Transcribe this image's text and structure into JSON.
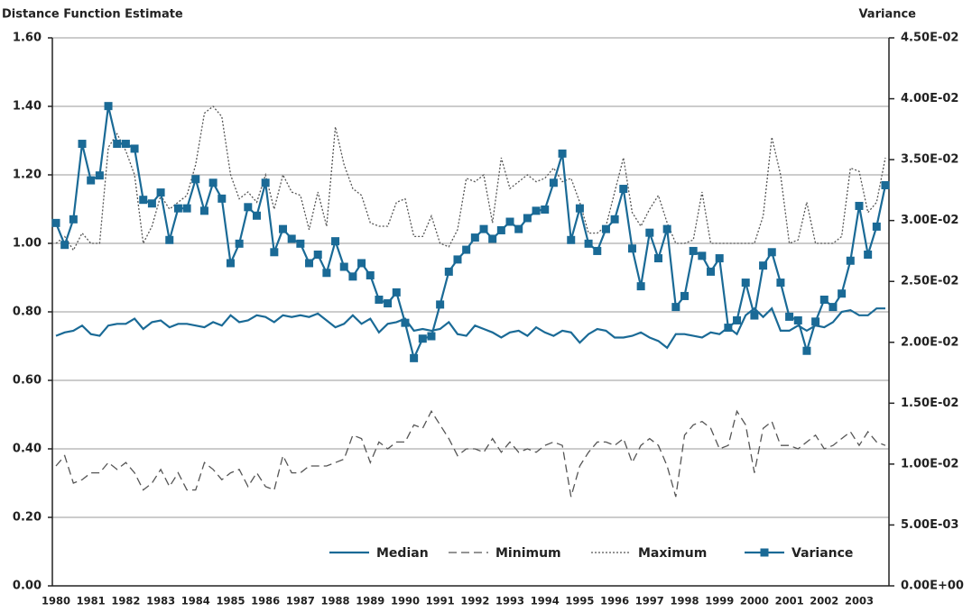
{
  "chart_data": {
    "type": "line",
    "y_label": "Distance Function Estimate",
    "y2_label": "Variance",
    "categories": [
      "1980",
      null,
      null,
      null,
      "1981",
      null,
      null,
      null,
      "1982",
      null,
      null,
      null,
      "1983",
      null,
      null,
      null,
      "1984",
      null,
      null,
      null,
      "1985",
      null,
      null,
      null,
      "1986",
      null,
      null,
      null,
      "1987",
      null,
      null,
      null,
      "1988",
      null,
      null,
      null,
      "1989",
      null,
      null,
      null,
      "1990",
      null,
      null,
      null,
      "1991",
      null,
      null,
      null,
      "1992",
      null,
      null,
      null,
      "1993",
      null,
      null,
      null,
      "1994",
      null,
      null,
      null,
      "1995",
      null,
      null,
      null,
      "1996",
      null,
      null,
      null,
      "1997",
      null,
      null,
      null,
      "1998",
      null,
      null,
      null,
      "1999",
      null,
      null,
      null,
      "2000",
      null,
      null,
      null,
      "2001",
      null,
      null,
      null,
      "2002",
      null,
      null,
      null,
      "2003",
      null,
      null,
      null
    ],
    "ylim": [
      0,
      1.6
    ],
    "yticks": [
      {
        "value": 0,
        "label": "0.00"
      },
      {
        "value": 0.2,
        "label": "0.20"
      },
      {
        "value": 0.4,
        "label": "0.40"
      },
      {
        "value": 0.6,
        "label": "0.60"
      },
      {
        "value": 0.8,
        "label": "0.80"
      },
      {
        "value": 1,
        "label": "1.00"
      },
      {
        "value": 1.2,
        "label": "1.20"
      },
      {
        "value": 1.4,
        "label": "1.40"
      },
      {
        "value": 1.6,
        "label": "1.60"
      }
    ],
    "y2lim": [
      0,
      0.045
    ],
    "y2ticks": [
      {
        "value": 0,
        "label": "0.00E+00"
      },
      {
        "value": 0.005,
        "label": "5.00E-03"
      },
      {
        "value": 0.01,
        "label": "1.00E-02"
      },
      {
        "value": 0.015,
        "label": "1.50E-02"
      },
      {
        "value": 0.02,
        "label": "2.00E-02"
      },
      {
        "value": 0.025,
        "label": "2.50E-02"
      },
      {
        "value": 0.03,
        "label": "3.00E-02"
      },
      {
        "value": 0.035,
        "label": "3.50E-02"
      },
      {
        "value": 0.04,
        "label": "4.00E-02"
      },
      {
        "value": 0.045,
        "label": "4.50E-02"
      }
    ],
    "grid": true,
    "legend": "bottom-right",
    "series": [
      {
        "name": "Median",
        "color": "#1a6a96",
        "style": "solid",
        "values": [
          0.73,
          0.74,
          0.745,
          0.76,
          0.735,
          0.73,
          0.76,
          0.765,
          0.765,
          0.78,
          0.75,
          0.77,
          0.775,
          0.755,
          0.765,
          0.765,
          0.76,
          0.755,
          0.77,
          0.76,
          0.79,
          0.77,
          0.775,
          0.79,
          0.785,
          0.77,
          0.79,
          0.785,
          0.79,
          0.785,
          0.795,
          0.775,
          0.755,
          0.765,
          0.79,
          0.765,
          0.78,
          0.74,
          0.765,
          0.77,
          0.78,
          0.745,
          0.75,
          0.745,
          0.75,
          0.77,
          0.735,
          0.73,
          0.76,
          0.75,
          0.74,
          0.725,
          0.74,
          0.745,
          0.73,
          0.755,
          0.74,
          0.73,
          0.745,
          0.74,
          0.71,
          0.735,
          0.75,
          0.745,
          0.725,
          0.725,
          0.73,
          0.74,
          0.725,
          0.715,
          0.695,
          0.735,
          0.735,
          0.73,
          0.725,
          0.74,
          0.735,
          0.755,
          0.735,
          0.79,
          0.81,
          0.785,
          0.81,
          0.745,
          0.745,
          0.76,
          0.745,
          0.76,
          0.755,
          0.77,
          0.8,
          0.805,
          0.79,
          0.79,
          0.81,
          0.81
        ]
      },
      {
        "name": "Minimum",
        "color": "#555555",
        "style": "dashed",
        "values": [
          0.35,
          0.38,
          0.3,
          0.31,
          0.33,
          0.33,
          0.36,
          0.34,
          0.36,
          0.33,
          0.28,
          0.3,
          0.34,
          0.29,
          0.33,
          0.28,
          0.28,
          0.36,
          0.34,
          0.31,
          0.33,
          0.34,
          0.29,
          0.33,
          0.29,
          0.28,
          0.38,
          0.33,
          0.33,
          0.35,
          0.35,
          0.35,
          0.36,
          0.37,
          0.44,
          0.43,
          0.36,
          0.42,
          0.4,
          0.42,
          0.42,
          0.47,
          0.46,
          0.51,
          0.47,
          0.43,
          0.38,
          0.4,
          0.4,
          0.39,
          0.43,
          0.39,
          0.42,
          0.39,
          0.4,
          0.39,
          0.41,
          0.42,
          0.41,
          0.26,
          0.35,
          0.39,
          0.42,
          0.42,
          0.41,
          0.43,
          0.36,
          0.41,
          0.43,
          0.41,
          0.35,
          0.26,
          0.44,
          0.47,
          0.48,
          0.46,
          0.4,
          0.41,
          0.51,
          0.47,
          0.33,
          0.46,
          0.48,
          0.41,
          0.41,
          0.4,
          0.42,
          0.44,
          0.4,
          0.41,
          0.43,
          0.45,
          0.41,
          0.45,
          0.42,
          0.41
        ]
      },
      {
        "name": "Maximum",
        "color": "#555555",
        "style": "dotted",
        "values": [
          1.0,
          1.02,
          0.98,
          1.03,
          1.0,
          1.0,
          1.28,
          1.32,
          1.27,
          1.2,
          1.0,
          1.05,
          1.14,
          1.1,
          1.12,
          1.14,
          1.23,
          1.38,
          1.4,
          1.37,
          1.2,
          1.13,
          1.15,
          1.12,
          1.2,
          1.1,
          1.2,
          1.15,
          1.14,
          1.04,
          1.15,
          1.05,
          1.34,
          1.23,
          1.16,
          1.14,
          1.06,
          1.05,
          1.05,
          1.12,
          1.13,
          1.02,
          1.02,
          1.08,
          1.0,
          0.99,
          1.04,
          1.19,
          1.18,
          1.2,
          1.06,
          1.25,
          1.16,
          1.18,
          1.2,
          1.18,
          1.19,
          1.22,
          1.18,
          1.19,
          1.12,
          1.03,
          1.03,
          1.05,
          1.15,
          1.25,
          1.09,
          1.05,
          1.1,
          1.14,
          1.06,
          1.0,
          1.0,
          1.01,
          1.15,
          1.0,
          1.0,
          1.0,
          1.0,
          1.0,
          1.0,
          1.08,
          1.31,
          1.2,
          1.0,
          1.01,
          1.12,
          1.0,
          1.0,
          1.0,
          1.02,
          1.22,
          1.21,
          1.09,
          1.12,
          1.25
        ]
      },
      {
        "name": "Variance",
        "color": "#1a6a96",
        "style": "solid",
        "marker": "square",
        "axis": "y2",
        "values": [
          0.0298,
          0.028,
          0.0301,
          0.0363,
          0.0333,
          0.0337,
          0.0394,
          0.0363,
          0.0363,
          0.0359,
          0.0317,
          0.0314,
          0.0323,
          0.0284,
          0.031,
          0.031,
          0.0334,
          0.0308,
          0.0331,
          0.0318,
          0.0265,
          0.0281,
          0.0311,
          0.0304,
          0.0331,
          0.0274,
          0.0293,
          0.0285,
          0.0281,
          0.0265,
          0.0272,
          0.0257,
          0.0283,
          0.0262,
          0.0254,
          0.0265,
          0.0255,
          0.0235,
          0.0232,
          0.0241,
          0.0216,
          0.0187,
          0.0203,
          0.0205,
          0.0231,
          0.0258,
          0.0268,
          0.0276,
          0.0286,
          0.0293,
          0.0285,
          0.0292,
          0.0299,
          0.0293,
          0.0302,
          0.0308,
          0.0309,
          0.0331,
          0.0355,
          0.0284,
          0.031,
          0.0281,
          0.0275,
          0.0293,
          0.0301,
          0.0326,
          0.0277,
          0.0246,
          0.029,
          0.0269,
          0.0293,
          0.0229,
          0.0238,
          0.0275,
          0.0271,
          0.0258,
          0.0269,
          0.0212,
          0.0218,
          0.0249,
          0.0222,
          0.0263,
          0.0274,
          0.0249,
          0.0221,
          0.0218,
          0.0193,
          0.0217,
          0.0235,
          0.0229,
          0.024,
          0.0267,
          0.0312,
          0.0272,
          0.0295,
          0.0329
        ]
      }
    ]
  }
}
